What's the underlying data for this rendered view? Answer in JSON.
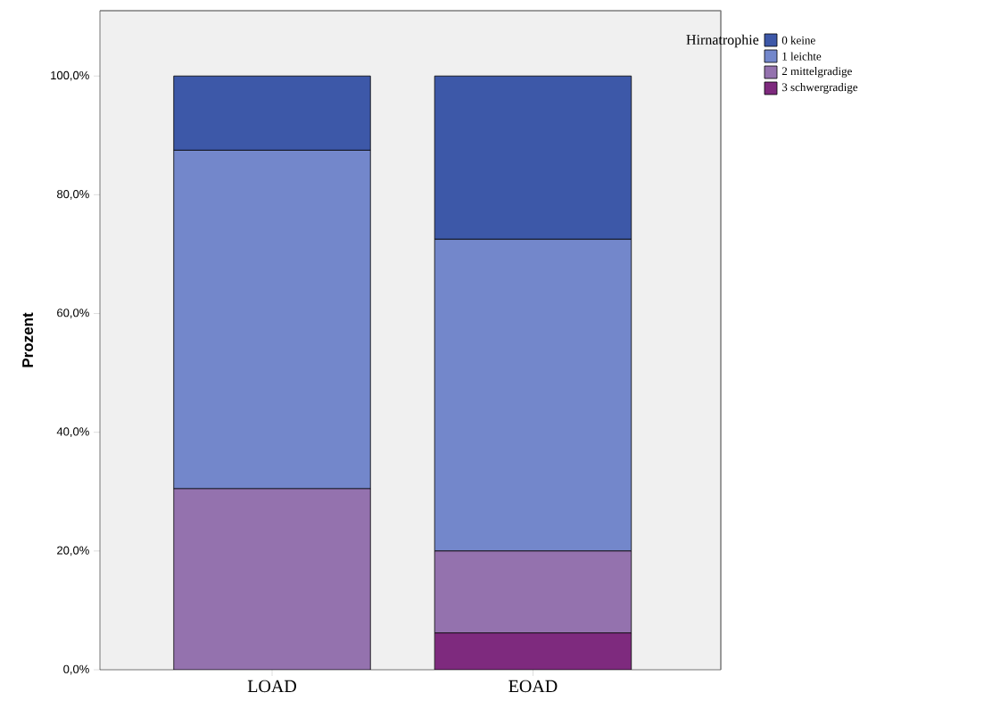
{
  "chart_data": {
    "type": "bar",
    "stacked": true,
    "ylabel": "Prozent",
    "legend_title": "Hirnatrophie",
    "legend": "top right",
    "categories": [
      "LOAD",
      "EOAD"
    ],
    "series": [
      {
        "name": "3 schwergradige",
        "color": "#7e2a7e",
        "values": [
          0,
          6.2
        ]
      },
      {
        "name": "2 mittelgradige",
        "color": "#9472ae",
        "values": [
          30.5,
          13.8
        ]
      },
      {
        "name": "1 leichte",
        "color": "#7387cb",
        "values": [
          57.0,
          52.5
        ]
      },
      {
        "name": "0 keine",
        "color": "#3d58a8",
        "values": [
          12.5,
          27.5
        ]
      }
    ],
    "ylim": [
      0,
      111
    ],
    "yticks": [
      {
        "value": 0,
        "label": "0,0%"
      },
      {
        "value": 20,
        "label": "20,0%"
      },
      {
        "value": 40,
        "label": "40,0%"
      },
      {
        "value": 60,
        "label": "60,0%"
      },
      {
        "value": 80,
        "label": "80,0%"
      },
      {
        "value": 100,
        "label": "100,0%"
      }
    ]
  }
}
